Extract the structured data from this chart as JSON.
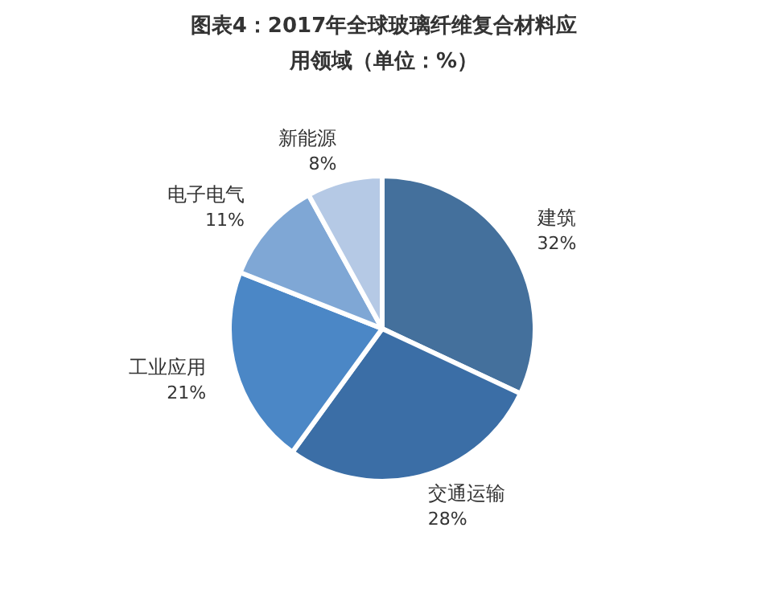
{
  "chart_data": {
    "type": "pie",
    "title": "图表4：2017年全球玻璃纤维复合材料应用领域（单位：%）",
    "categories": [
      "建筑",
      "交通运输",
      "工业应用",
      "电子电气",
      "新能源"
    ],
    "values": [
      32,
      28,
      21,
      11,
      8
    ],
    "value_labels": [
      "32%",
      "28%",
      "21%",
      "11%",
      "8%"
    ],
    "colors": [
      "#44709c",
      "#3b6ea6",
      "#4b87c6",
      "#7fa7d5",
      "#b5c9e5"
    ]
  }
}
